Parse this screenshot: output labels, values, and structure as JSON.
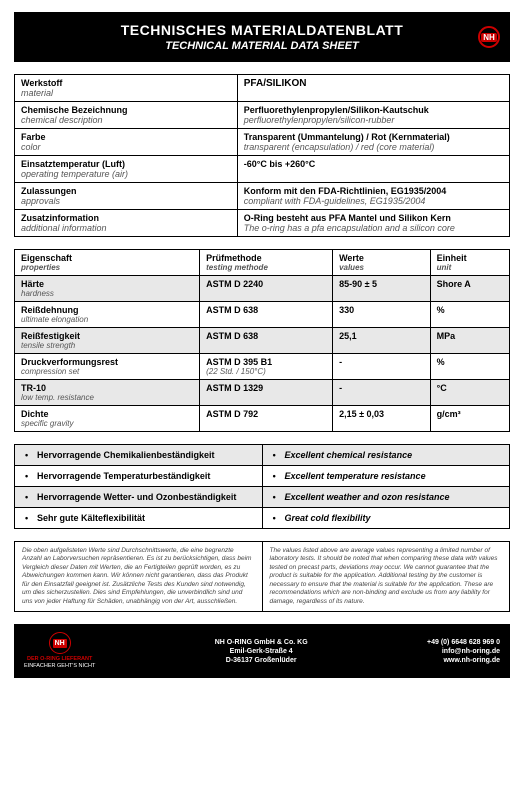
{
  "header": {
    "title": "TECHNISCHES MATERIALDATENBLATT",
    "subtitle": "TECHNICAL MATERIAL DATA SHEET",
    "logo_text": "NH"
  },
  "info": {
    "rows": [
      {
        "label_de": "Werkstoff",
        "label_en": "material",
        "value_de": "PFA/SILIKON",
        "value_en": "",
        "value_big": true
      },
      {
        "label_de": "Chemische Bezeichnung",
        "label_en": "chemical description",
        "value_de": "Perfluorethylenpropylen/Silikon-Kautschuk",
        "value_en": "perfluorethylenpropylen/silicon-rubber"
      },
      {
        "label_de": "Farbe",
        "label_en": "color",
        "value_de": "Transparent (Ummantelung) / Rot (Kernmaterial)",
        "value_en": "transparent (encapsulation) / red (core material)"
      },
      {
        "label_de": "Einsatztemperatur (Luft)",
        "label_en": "operating temperature (air)",
        "value_de": "-60°C bis +260°C",
        "value_en": ""
      },
      {
        "label_de": "Zulassungen",
        "label_en": "approvals",
        "value_de": "Konform mit den FDA-Richtlinien, EG1935/2004",
        "value_en": "compliant with FDA-guidelines, EG1935/2004"
      },
      {
        "label_de": "Zusatzinformation",
        "label_en": "additional information",
        "value_de": "O-Ring besteht aus PFA Mantel und Silikon Kern",
        "value_en": "The o-ring has a pfa encapsulation and a silicon core"
      }
    ]
  },
  "props": {
    "headers": {
      "c1_de": "Eigenschaft",
      "c1_en": "properties",
      "c2_de": "Prüfmethode",
      "c2_en": "testing methode",
      "c3_de": "Werte",
      "c3_en": "values",
      "c4_de": "Einheit",
      "c4_en": "unit"
    },
    "rows": [
      {
        "p_de": "Härte",
        "p_en": "hardness",
        "method": "ASTM D 2240",
        "method_sub": "",
        "value": "85-90 ± 5",
        "unit": "Shore A"
      },
      {
        "p_de": "Reißdehnung",
        "p_en": "ultimate elongation",
        "method": "ASTM D 638",
        "method_sub": "",
        "value": "330",
        "unit": "%"
      },
      {
        "p_de": "Reißfestigkeit",
        "p_en": "tensile strength",
        "method": "ASTM D 638",
        "method_sub": "",
        "value": "25,1",
        "unit": "MPa"
      },
      {
        "p_de": "Druckverformungsrest",
        "p_en": "compression set",
        "method": "ASTM D 395 B1",
        "method_sub": "(22 Std. / 150°C)",
        "value": "-",
        "unit": "%"
      },
      {
        "p_de": "TR-10",
        "p_en": "low temp. resistance",
        "method": "ASTM D 1329",
        "method_sub": "",
        "value": "-",
        "unit": "°C"
      },
      {
        "p_de": "Dichte",
        "p_en": "specific gravity",
        "method": "ASTM D 792",
        "method_sub": "",
        "value": "2,15 ± 0,03",
        "unit": "g/cm³"
      }
    ]
  },
  "features": {
    "rows": [
      {
        "de": "Hervorragende Chemikalienbeständigkeit",
        "en": "Excellent chemical resistance"
      },
      {
        "de": "Hervorragende Temperaturbeständigkeit",
        "en": "Excellent temperature resistance"
      },
      {
        "de": "Hervorragende Wetter- und Ozonbeständigkeit",
        "en": "Excellent weather and ozon resistance"
      },
      {
        "de": "Sehr gute Kälteflexibilität",
        "en": "Great cold flexibility"
      }
    ]
  },
  "disclaimer": {
    "de": "Die oben aufgelisteten Werte sind Durchschnittswerte, die eine begrenzte Anzahl an Laborversuchen repräsentieren. Es ist zu berücksichtigen, dass beim Vergleich dieser Daten mit Werten, die an Fertigteilen geprüft worden, es zu Abweichungen kommen kann. Wir können nicht garantieren, dass das Produkt für den Einsatzfall geeignet ist. Zusätzliche Tests des Kunden sind notwendig, um dies sicherzustellen. Dies sind Empfehlungen, die unverbindlich sind und uns von jeder Haftung für Schäden, unabhängig von der Art, ausschließen.",
    "en": "The values listed above are average values representing a limited number of laboratory tests. It should be noted that when comparing these data with values tested on precast parts, deviations may occur. We cannot guarantee that the product is suitable for the application. Additional testing by the customer is necessary to ensure that the material is suitable for the application. These are recommendations which are non-binding and exclude us from any liability for damage, regardless of its nature."
  },
  "footer": {
    "logo_text": "NH",
    "slogan1": "DER O-RING LIEFERANT",
    "slogan2": "EINFACHER GEHT'S NICHT",
    "company": "NH O-RING GmbH & Co. KG",
    "street": "Emil-Gerk-Straße 4",
    "city": "D-36137 Großenlüder",
    "phone": "+49 (0) 6648 628 969 0",
    "email": "info@nh-oring.de",
    "web": "www.nh-oring.de"
  }
}
